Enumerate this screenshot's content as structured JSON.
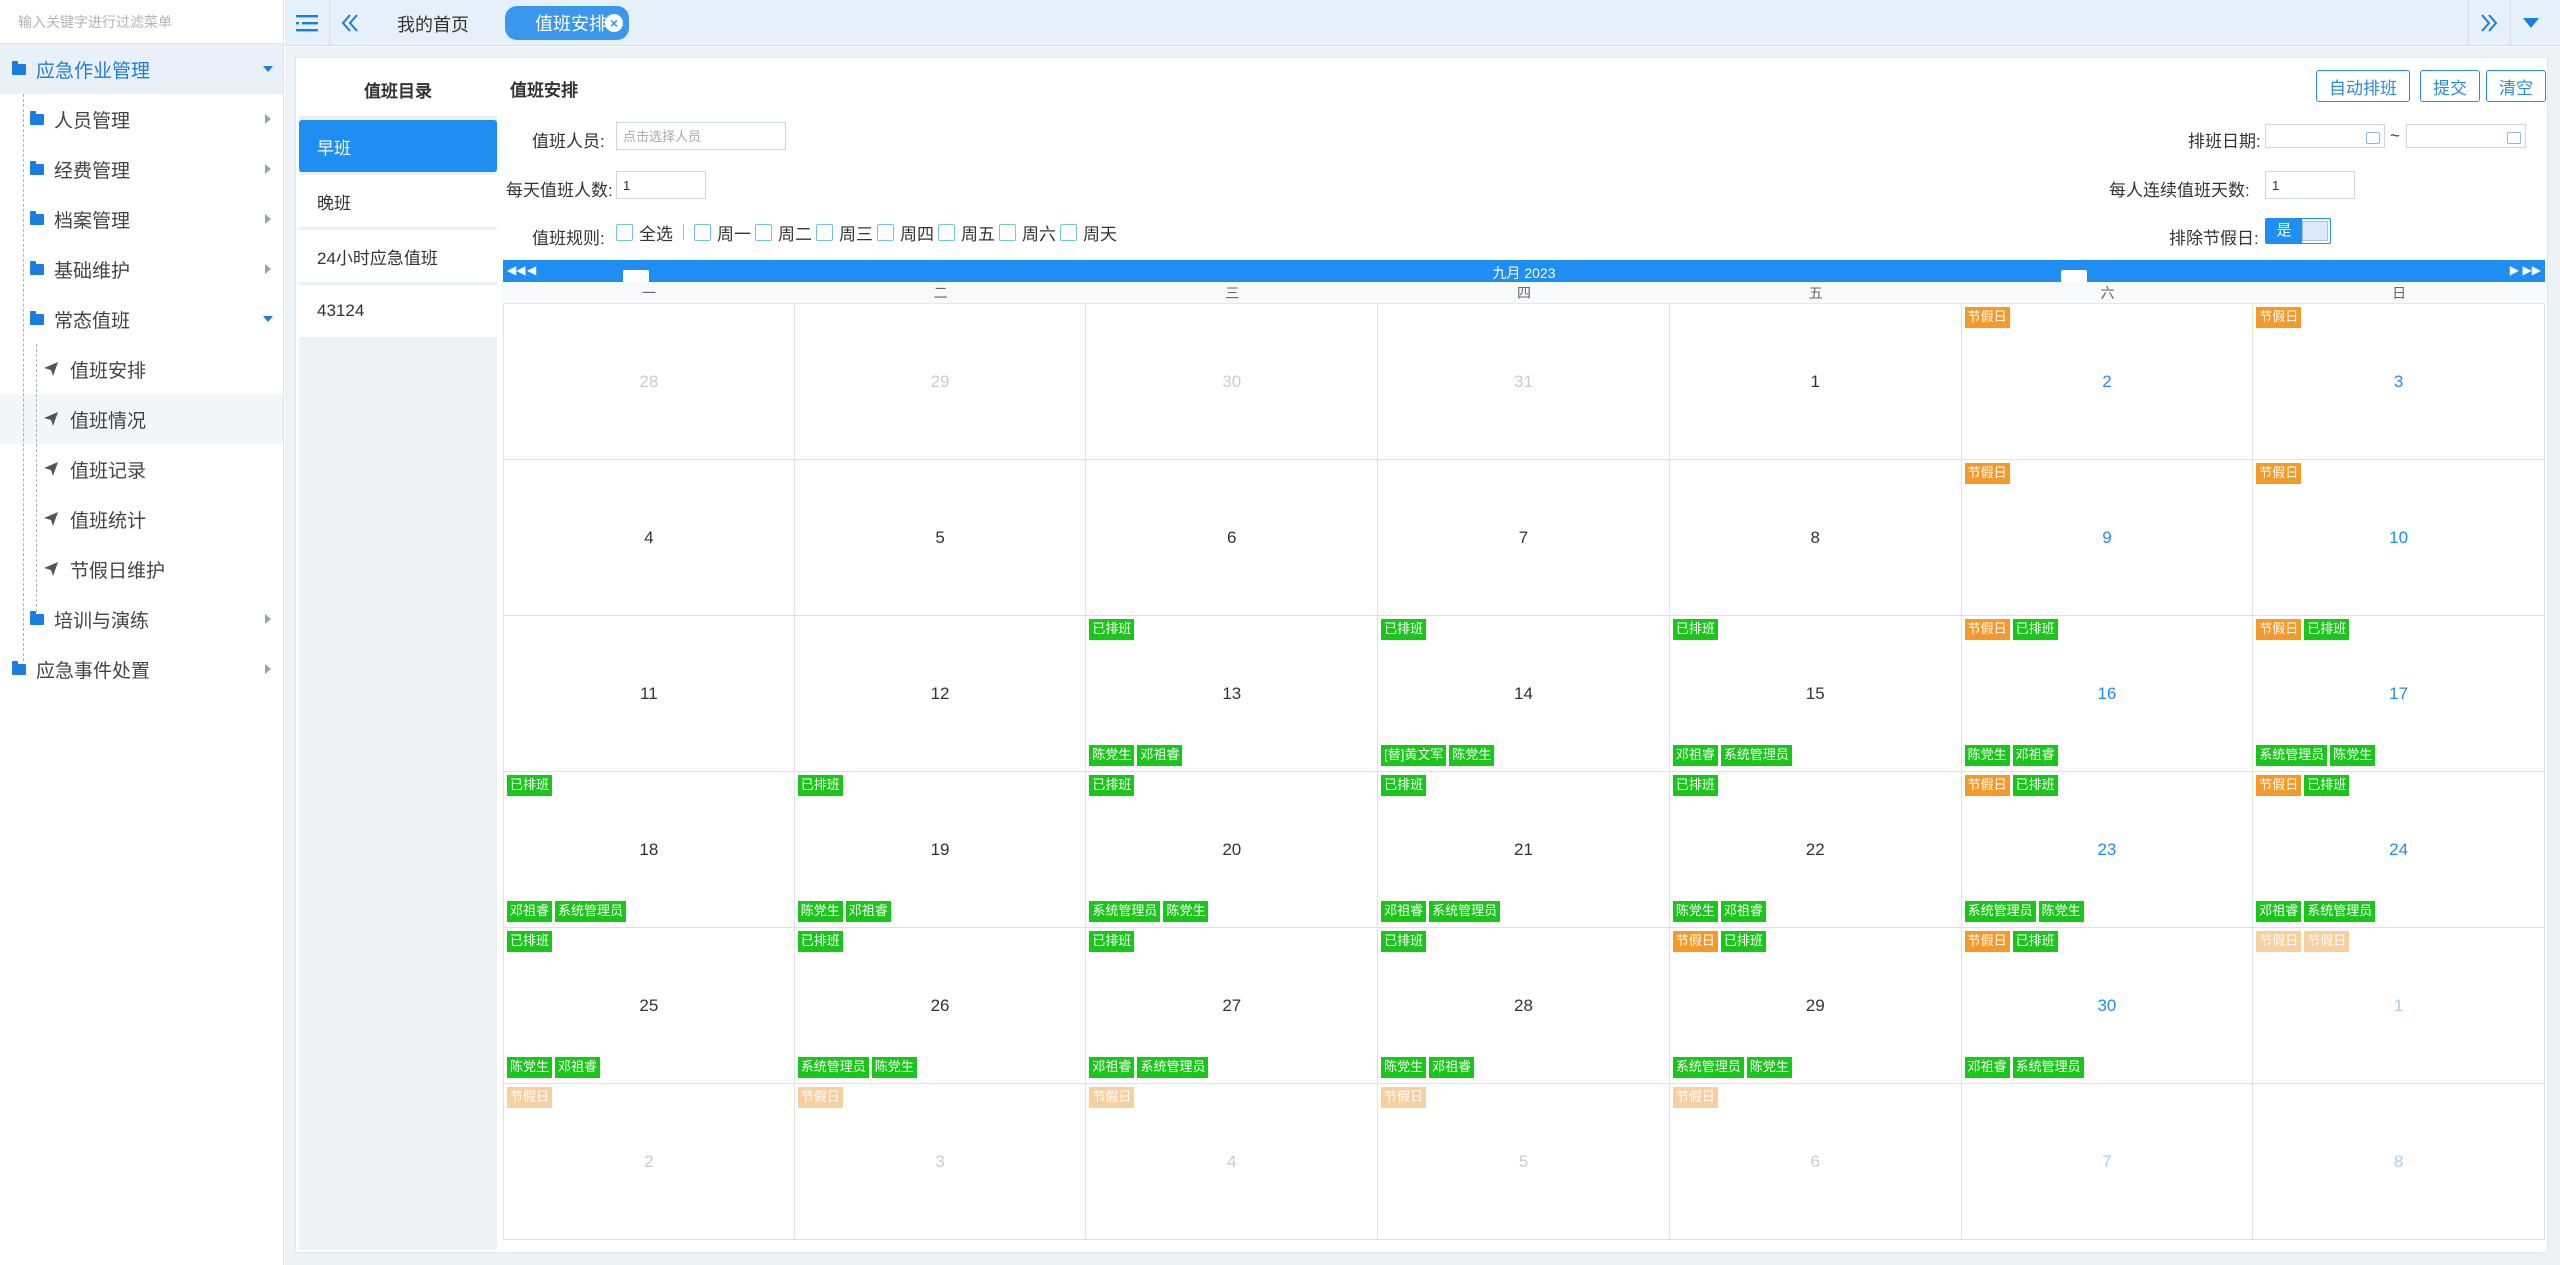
{
  "sidebar": {
    "search_placeholder": "输入关键字进行过滤菜单",
    "items": [
      {
        "label": "应急作业管理",
        "level": 1,
        "state": "open"
      },
      {
        "label": "人员管理",
        "level": 2,
        "state": "closed"
      },
      {
        "label": "经费管理",
        "level": 2,
        "state": "closed"
      },
      {
        "label": "档案管理",
        "level": 2,
        "state": "closed"
      },
      {
        "label": "基础维护",
        "level": 2,
        "state": "closed"
      },
      {
        "label": "常态值班",
        "level": 2,
        "state": "open"
      },
      {
        "label": "值班安排",
        "level": 3
      },
      {
        "label": "值班情况",
        "level": 3
      },
      {
        "label": "值班记录",
        "level": 3
      },
      {
        "label": "值班统计",
        "level": 3
      },
      {
        "label": "节假日维护",
        "level": 3
      },
      {
        "label": "培训与演练",
        "level": 2,
        "state": "closed"
      },
      {
        "label": "应急事件处置",
        "level": 1,
        "state": "closed"
      }
    ]
  },
  "topbar": {
    "tabs": [
      {
        "label": "我的首页"
      },
      {
        "label": "值班安排"
      }
    ]
  },
  "shifts": {
    "title": "值班目录",
    "items": [
      "早班",
      "晚班",
      "24小时应急值班",
      "43124"
    ]
  },
  "form": {
    "title": "值班安排",
    "buttons": {
      "auto": "自动排班",
      "submit": "提交",
      "clear": "清空"
    },
    "person_label": "值班人员:",
    "person_placeholder": "点击选择人员",
    "date_label": "排班日期:",
    "date_sep": "~",
    "daily_count_label": "每天值班人数:",
    "daily_count": "1",
    "consecutive_label": "每人连续值班天数:",
    "consecutive": "1",
    "rule_label": "值班规则:",
    "rules": [
      "全选",
      "周一",
      "周二",
      "周三",
      "周四",
      "周五",
      "周六",
      "周天"
    ],
    "exclude_holiday_label": "排除节假日:",
    "exclude_holiday_value": "是"
  },
  "calendar": {
    "title": "九月 2023",
    "weekdays": [
      "一",
      "二",
      "三",
      "四",
      "五",
      "六",
      "日"
    ],
    "holiday_tag": "节假日",
    "scheduled_tag": "已排班",
    "days": [
      {
        "d": "28",
        "other": true,
        "tags": [],
        "people": []
      },
      {
        "d": "29",
        "other": true,
        "tags": [],
        "people": []
      },
      {
        "d": "30",
        "other": true,
        "tags": [],
        "people": []
      },
      {
        "d": "31",
        "other": true,
        "tags": [],
        "people": []
      },
      {
        "d": "1",
        "tags": [],
        "people": []
      },
      {
        "d": "2",
        "weekend": true,
        "tags": [
          "hol"
        ],
        "people": []
      },
      {
        "d": "3",
        "weekend": true,
        "tags": [
          "hol"
        ],
        "people": []
      },
      {
        "d": "4",
        "tags": [],
        "people": []
      },
      {
        "d": "5",
        "tags": [],
        "people": []
      },
      {
        "d": "6",
        "tags": [],
        "people": []
      },
      {
        "d": "7",
        "tags": [],
        "people": []
      },
      {
        "d": "8",
        "tags": [],
        "people": []
      },
      {
        "d": "9",
        "weekend": true,
        "tags": [
          "hol"
        ],
        "people": []
      },
      {
        "d": "10",
        "weekend": true,
        "tags": [
          "hol"
        ],
        "people": []
      },
      {
        "d": "11",
        "tags": [],
        "people": []
      },
      {
        "d": "12",
        "tags": [],
        "people": []
      },
      {
        "d": "13",
        "tags": [
          "sch"
        ],
        "people": [
          "陈党生",
          "邓祖睿"
        ]
      },
      {
        "d": "14",
        "tags": [
          "sch"
        ],
        "people": [
          "[替]黄文军",
          "陈党生"
        ]
      },
      {
        "d": "15",
        "tags": [
          "sch"
        ],
        "people": [
          "邓祖睿",
          "系统管理员"
        ]
      },
      {
        "d": "16",
        "weekend": true,
        "tags": [
          "hol",
          "sch"
        ],
        "people": [
          "陈党生",
          "邓祖睿"
        ]
      },
      {
        "d": "17",
        "weekend": true,
        "tags": [
          "hol",
          "sch"
        ],
        "people": [
          "系统管理员",
          "陈党生"
        ]
      },
      {
        "d": "18",
        "tags": [
          "sch"
        ],
        "people": [
          "邓祖睿",
          "系统管理员"
        ]
      },
      {
        "d": "19",
        "tags": [
          "sch"
        ],
        "people": [
          "陈党生",
          "邓祖睿"
        ]
      },
      {
        "d": "20",
        "tags": [
          "sch"
        ],
        "people": [
          "系统管理员",
          "陈党生"
        ]
      },
      {
        "d": "21",
        "tags": [
          "sch"
        ],
        "people": [
          "邓祖睿",
          "系统管理员"
        ]
      },
      {
        "d": "22",
        "tags": [
          "sch"
        ],
        "people": [
          "陈党生",
          "邓祖睿"
        ]
      },
      {
        "d": "23",
        "weekend": true,
        "tags": [
          "hol",
          "sch"
        ],
        "people": [
          "系统管理员",
          "陈党生"
        ]
      },
      {
        "d": "24",
        "weekend": true,
        "tags": [
          "hol",
          "sch"
        ],
        "people": [
          "邓祖睿",
          "系统管理员"
        ]
      },
      {
        "d": "25",
        "tags": [
          "sch"
        ],
        "people": [
          "陈党生",
          "邓祖睿"
        ]
      },
      {
        "d": "26",
        "tags": [
          "sch"
        ],
        "people": [
          "系统管理员",
          "陈党生"
        ]
      },
      {
        "d": "27",
        "tags": [
          "sch"
        ],
        "people": [
          "邓祖睿",
          "系统管理员"
        ]
      },
      {
        "d": "28",
        "tags": [
          "sch"
        ],
        "people": [
          "陈党生",
          "邓祖睿"
        ]
      },
      {
        "d": "29",
        "tags": [
          "hol",
          "sch"
        ],
        "people": [
          "系统管理员",
          "陈党生"
        ]
      },
      {
        "d": "30",
        "weekend": true,
        "tags": [
          "hol",
          "sch"
        ],
        "people": [
          "邓祖睿",
          "系统管理员"
        ]
      },
      {
        "d": "1",
        "weekend": true,
        "other": true,
        "tags": [
          "hol",
          "hol"
        ],
        "people": []
      },
      {
        "d": "2",
        "other": true,
        "tags": [
          "hol"
        ],
        "people": []
      },
      {
        "d": "3",
        "other": true,
        "tags": [
          "hol"
        ],
        "people": []
      },
      {
        "d": "4",
        "other": true,
        "tags": [
          "hol"
        ],
        "people": []
      },
      {
        "d": "5",
        "other": true,
        "tags": [
          "hol"
        ],
        "people": []
      },
      {
        "d": "6",
        "other": true,
        "tags": [
          "hol"
        ],
        "people": []
      },
      {
        "d": "7",
        "weekend": true,
        "other": true,
        "tags": [],
        "people": []
      },
      {
        "d": "8",
        "weekend": true,
        "other": true,
        "tags": [],
        "people": []
      }
    ]
  },
  "colors": {
    "accent": "#1e8ef2",
    "holiday": "#f39a29",
    "scheduled": "#19c619"
  }
}
